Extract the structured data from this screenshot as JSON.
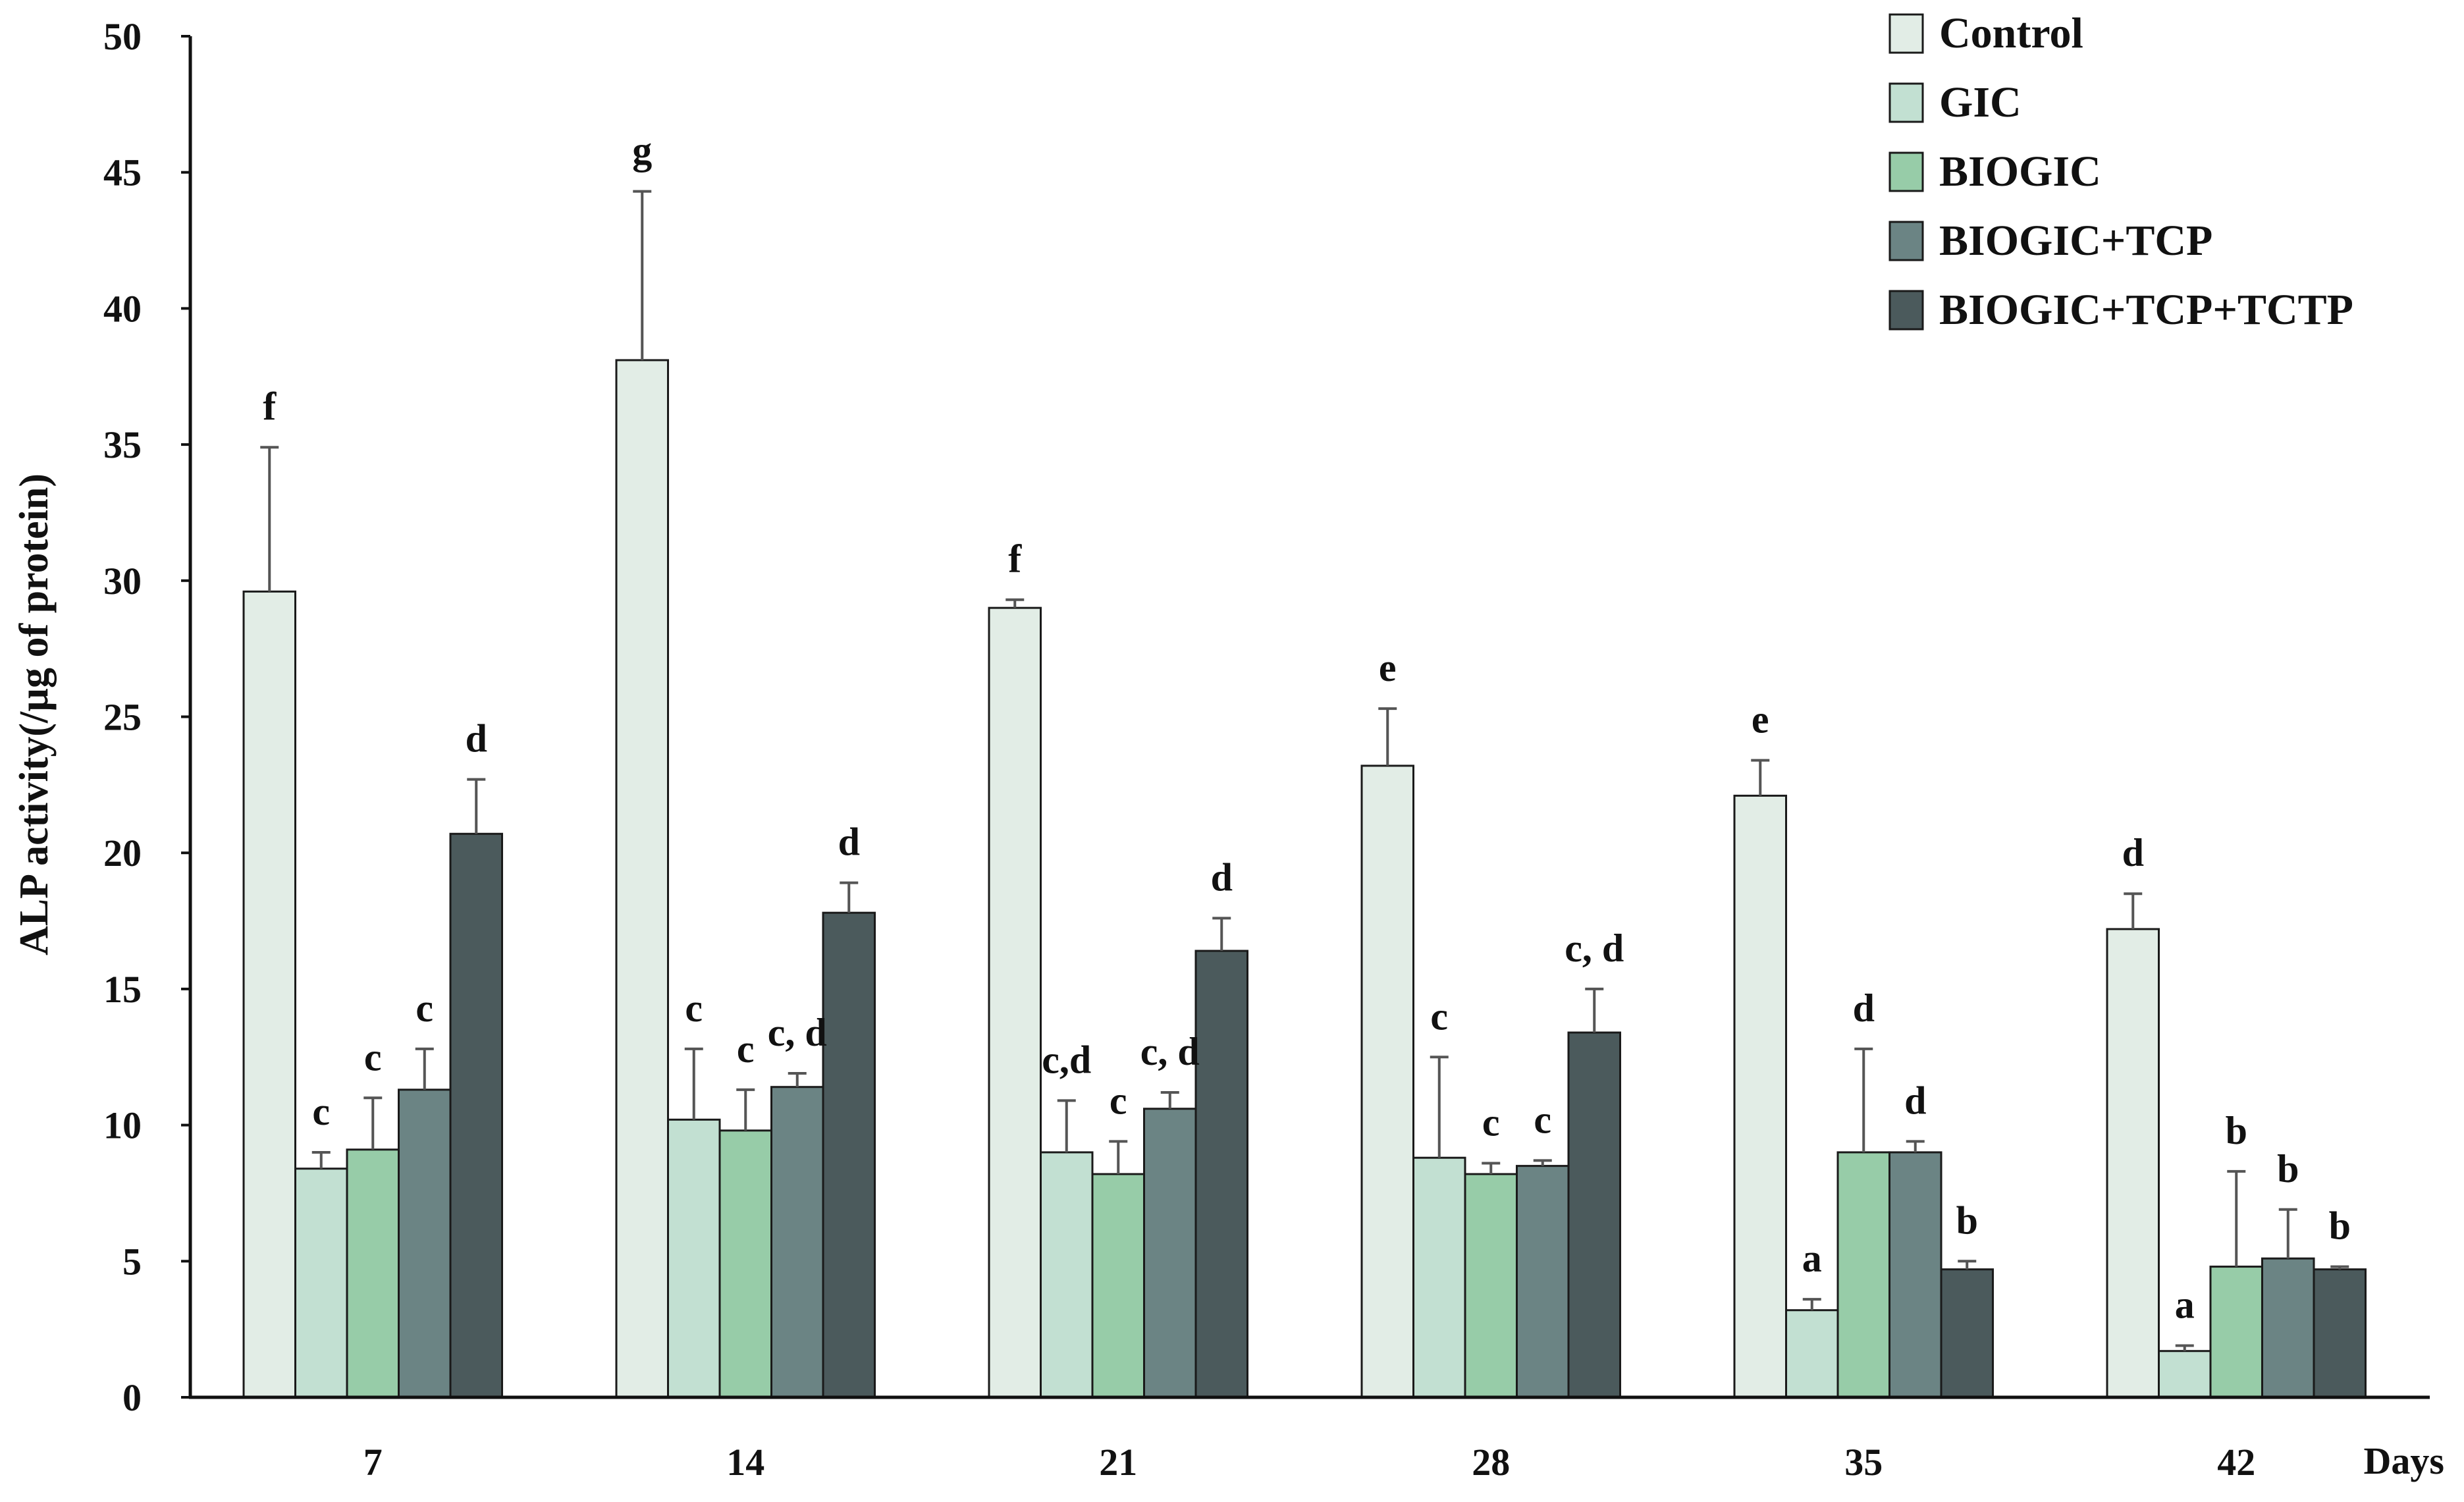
{
  "chart_data": {
    "type": "bar",
    "title": "",
    "xlabel": "Days",
    "ylabel": "ALP activity(/µg of protein)",
    "ylim": [
      0,
      50
    ],
    "yticks": [
      0,
      5,
      10,
      15,
      20,
      25,
      30,
      35,
      40,
      45,
      50
    ],
    "categories": [
      "7",
      "14",
      "21",
      "28",
      "35",
      "42"
    ],
    "legend_position": "top-right",
    "series": [
      {
        "name": "Control",
        "color": "#e2ede6",
        "values": [
          29.6,
          38.1,
          29.0,
          23.2,
          22.1,
          17.2
        ],
        "errors": [
          5.3,
          6.2,
          0.3,
          2.1,
          1.3,
          1.3
        ],
        "letters": [
          "f",
          "g",
          "f",
          "e",
          "e",
          "d"
        ]
      },
      {
        "name": "GIC",
        "color": "#c2e0d2",
        "values": [
          8.4,
          10.2,
          9.0,
          8.8,
          3.2,
          1.7
        ],
        "errors": [
          0.6,
          2.6,
          1.9,
          3.7,
          0.4,
          0.2
        ],
        "letters": [
          "c",
          "c",
          "c,d",
          "c",
          "a",
          "a"
        ]
      },
      {
        "name": "BIOGIC",
        "color": "#97cca8",
        "values": [
          9.1,
          9.8,
          8.2,
          8.2,
          9.0,
          4.8
        ],
        "errors": [
          1.9,
          1.5,
          1.2,
          0.4,
          3.8,
          3.5
        ],
        "letters": [
          "c",
          "c",
          "c",
          "c",
          "d",
          "b"
        ]
      },
      {
        "name": "BIOGIC+TCP",
        "color": "#6b8484",
        "values": [
          11.3,
          11.4,
          10.6,
          8.5,
          9.0,
          5.1
        ],
        "errors": [
          1.5,
          0.5,
          0.6,
          0.2,
          0.4,
          1.8
        ],
        "letters": [
          "c",
          "c, d",
          "c, d",
          "c",
          "d",
          "b"
        ]
      },
      {
        "name": "BIOGIC+TCP+TCTP",
        "color": "#4b5a5c",
        "values": [
          20.7,
          17.8,
          16.4,
          13.4,
          4.7,
          4.7
        ],
        "errors": [
          2.0,
          1.1,
          1.2,
          1.6,
          0.3,
          0.1
        ],
        "letters": [
          "d",
          "d",
          "d",
          "c, d",
          "b",
          "b"
        ]
      }
    ]
  }
}
